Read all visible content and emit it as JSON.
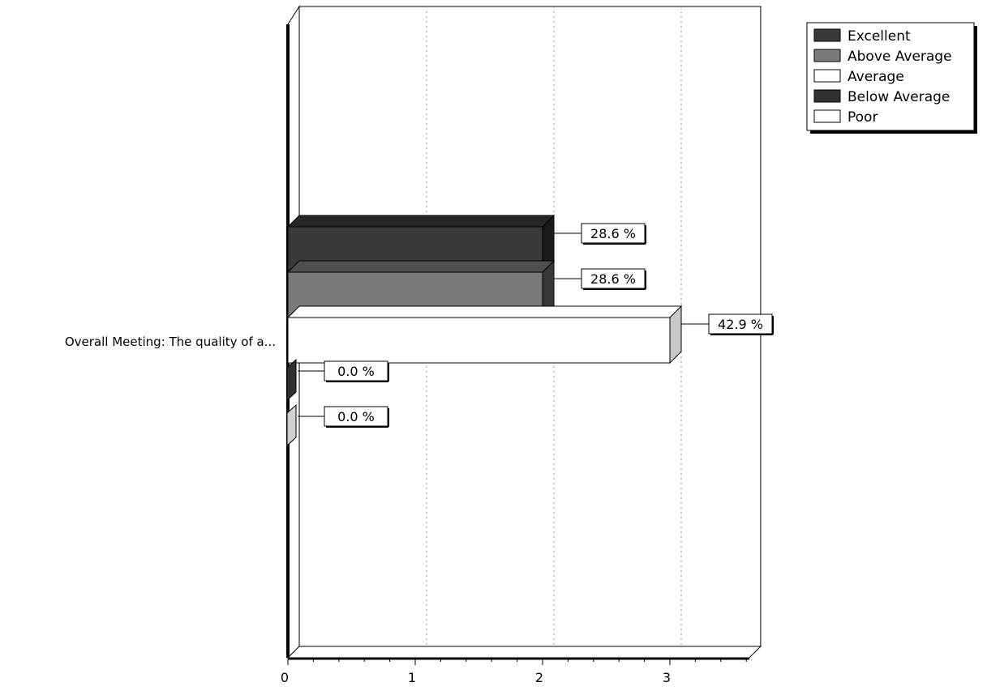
{
  "chart_data": {
    "type": "bar",
    "orientation": "horizontal",
    "categories": [
      "Overall Meeting: The quality of a..."
    ],
    "series": [
      {
        "name": "Excellent",
        "values": [
          2
        ],
        "label": "28.6 %",
        "color": "#3a3a3a"
      },
      {
        "name": "Above Average",
        "values": [
          2
        ],
        "label": "28.6 %",
        "color": "#7a7a7a"
      },
      {
        "name": "Average",
        "values": [
          3
        ],
        "label": "42.9 %",
        "color": "#ffffff"
      },
      {
        "name": "Below Average",
        "values": [
          0
        ],
        "label": "0.0 %",
        "color": "#303030"
      },
      {
        "name": "Poor",
        "values": [
          0
        ],
        "label": "0.0 %",
        "color": "#ffffff"
      }
    ],
    "x_ticks": [
      "0",
      "1",
      "2",
      "3"
    ],
    "xlim": [
      0,
      3.7
    ],
    "grid": true,
    "legend_position": "top-right",
    "style": "3d"
  }
}
